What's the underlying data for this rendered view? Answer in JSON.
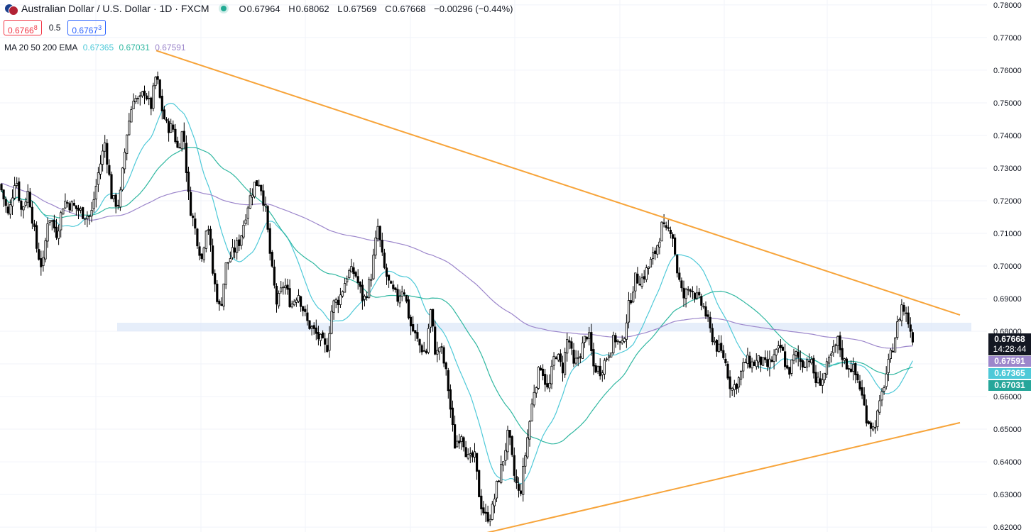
{
  "header": {
    "title": "Australian Dollar / U.S. Dollar · 1D · FXCM",
    "ohlc": {
      "o_label": "O",
      "o": "0.67964",
      "h_label": "H",
      "h": "0.68062",
      "l_label": "L",
      "l": "0.67569",
      "c_label": "C",
      "c": "0.67668",
      "change": "−0.00296 (−0.44%)"
    }
  },
  "quote": {
    "bid": "0.6766",
    "bid_sup": "8",
    "spread": "0.5",
    "ask": "0.6767",
    "ask_sup": "3"
  },
  "ma_legend": {
    "label": "MA 20 50 200 EMA",
    "ma20": "0.67365",
    "ma50": "0.67031",
    "ma200": "0.67591"
  },
  "price_tags": {
    "last": "0.67668",
    "countdown": "14:28:44",
    "ma200": "0.67591",
    "ma20": "0.67365",
    "ma50": "0.67031"
  },
  "colors": {
    "candle": "#000000",
    "ma20": "#4ec9d8",
    "ma50": "#2fb7a0",
    "ma200": "#9c86cb",
    "trendline": "#f7a43a",
    "zone": "#dbe7f8",
    "grid": "#f0f3fa"
  },
  "chart_data": {
    "type": "candlestick",
    "symbol": "AUDUSD",
    "interval": "1D",
    "y_ticks": [
      "0.78000",
      "0.77000",
      "0.76000",
      "0.75000",
      "0.74000",
      "0.73000",
      "0.72000",
      "0.71000",
      "0.70000",
      "0.69000",
      "0.68000",
      "0.67000",
      "0.66000",
      "0.65000",
      "0.64000",
      "0.63000",
      "0.62000"
    ],
    "ylim": [
      0.6185,
      0.7815
    ],
    "path_points": [
      [
        0,
        0.725
      ],
      [
        12,
        0.715
      ],
      [
        22,
        0.728
      ],
      [
        30,
        0.717
      ],
      [
        40,
        0.723
      ],
      [
        52,
        0.705
      ],
      [
        60,
        0.699
      ],
      [
        68,
        0.716
      ],
      [
        80,
        0.71
      ],
      [
        90,
        0.72
      ],
      [
        105,
        0.718
      ],
      [
        118,
        0.716
      ],
      [
        128,
        0.715
      ],
      [
        138,
        0.728
      ],
      [
        148,
        0.738
      ],
      [
        158,
        0.72
      ],
      [
        168,
        0.719
      ],
      [
        178,
        0.74
      ],
      [
        188,
        0.752
      ],
      [
        196,
        0.75
      ],
      [
        204,
        0.754
      ],
      [
        212,
        0.748
      ],
      [
        220,
        0.759
      ],
      [
        226,
        0.75
      ],
      [
        234,
        0.743
      ],
      [
        244,
        0.742
      ],
      [
        250,
        0.736
      ],
      [
        258,
        0.742
      ],
      [
        266,
        0.72
      ],
      [
        276,
        0.71
      ],
      [
        284,
        0.702
      ],
      [
        292,
        0.715
      ],
      [
        300,
        0.697
      ],
      [
        310,
        0.686
      ],
      [
        318,
        0.7
      ],
      [
        328,
        0.704
      ],
      [
        338,
        0.708
      ],
      [
        348,
        0.718
      ],
      [
        358,
        0.725
      ],
      [
        366,
        0.726
      ],
      [
        374,
        0.717
      ],
      [
        382,
        0.7
      ],
      [
        390,
        0.688
      ],
      [
        400,
        0.695
      ],
      [
        410,
        0.688
      ],
      [
        420,
        0.692
      ],
      [
        432,
        0.683
      ],
      [
        442,
        0.68
      ],
      [
        452,
        0.677
      ],
      [
        460,
        0.674
      ],
      [
        468,
        0.688
      ],
      [
        478,
        0.69
      ],
      [
        490,
        0.698
      ],
      [
        500,
        0.698
      ],
      [
        512,
        0.689
      ],
      [
        522,
        0.696
      ],
      [
        532,
        0.712
      ],
      [
        540,
        0.7
      ],
      [
        550,
        0.693
      ],
      [
        560,
        0.69
      ],
      [
        568,
        0.694
      ],
      [
        578,
        0.682
      ],
      [
        590,
        0.676
      ],
      [
        600,
        0.673
      ],
      [
        606,
        0.687
      ],
      [
        614,
        0.672
      ],
      [
        620,
        0.676
      ],
      [
        630,
        0.665
      ],
      [
        640,
        0.645
      ],
      [
        650,
        0.649
      ],
      [
        660,
        0.64
      ],
      [
        668,
        0.642
      ],
      [
        676,
        0.628
      ],
      [
        684,
        0.623
      ],
      [
        692,
        0.624
      ],
      [
        700,
        0.633
      ],
      [
        708,
        0.64
      ],
      [
        716,
        0.649
      ],
      [
        724,
        0.636
      ],
      [
        732,
        0.629
      ],
      [
        742,
        0.646
      ],
      [
        752,
        0.662
      ],
      [
        762,
        0.67
      ],
      [
        772,
        0.661
      ],
      [
        782,
        0.674
      ],
      [
        792,
        0.668
      ],
      [
        800,
        0.679
      ],
      [
        808,
        0.669
      ],
      [
        818,
        0.674
      ],
      [
        828,
        0.68
      ],
      [
        836,
        0.669
      ],
      [
        846,
        0.668
      ],
      [
        856,
        0.673
      ],
      [
        866,
        0.678
      ],
      [
        876,
        0.675
      ],
      [
        884,
        0.686
      ],
      [
        894,
        0.696
      ],
      [
        904,
        0.696
      ],
      [
        914,
        0.7
      ],
      [
        924,
        0.705
      ],
      [
        932,
        0.712
      ],
      [
        938,
        0.71
      ],
      [
        946,
        0.712
      ],
      [
        954,
        0.698
      ],
      [
        962,
        0.69
      ],
      [
        972,
        0.694
      ],
      [
        982,
        0.69
      ],
      [
        992,
        0.687
      ],
      [
        1000,
        0.68
      ],
      [
        1010,
        0.675
      ],
      [
        1020,
        0.672
      ],
      [
        1030,
        0.662
      ],
      [
        1040,
        0.665
      ],
      [
        1050,
        0.671
      ],
      [
        1060,
        0.67
      ],
      [
        1070,
        0.671
      ],
      [
        1080,
        0.669
      ],
      [
        1090,
        0.672
      ],
      [
        1100,
        0.675
      ],
      [
        1110,
        0.667
      ],
      [
        1120,
        0.673
      ],
      [
        1130,
        0.67
      ],
      [
        1140,
        0.672
      ],
      [
        1150,
        0.664
      ],
      [
        1160,
        0.666
      ],
      [
        1170,
        0.672
      ],
      [
        1180,
        0.677
      ],
      [
        1190,
        0.67
      ],
      [
        1200,
        0.669
      ],
      [
        1210,
        0.664
      ],
      [
        1220,
        0.654
      ],
      [
        1230,
        0.65
      ],
      [
        1238,
        0.656
      ],
      [
        1246,
        0.665
      ],
      [
        1254,
        0.672
      ],
      [
        1262,
        0.68
      ],
      [
        1270,
        0.688
      ],
      [
        1278,
        0.684
      ],
      [
        1284,
        0.679
      ],
      [
        1288,
        0.6767
      ]
    ],
    "moving_averages": [
      {
        "name": "MA 20",
        "period": 20,
        "color": "#4ec9d8",
        "last": 0.67365
      },
      {
        "name": "MA 50",
        "period": 50,
        "color": "#2fb7a0",
        "last": 0.67031
      },
      {
        "name": "EMA 200",
        "period": 200,
        "color": "#9c86cb",
        "last": 0.67591
      }
    ],
    "trendlines": [
      {
        "from": [
          220,
          0.766
        ],
        "to": [
          1352,
          0.685
        ]
      },
      {
        "from": [
          680,
          0.618
        ],
        "to": [
          1352,
          0.652
        ]
      }
    ],
    "zone": {
      "from": 165,
      "to": 1368,
      "y_low": 0.68,
      "y_high": 0.6826
    }
  }
}
